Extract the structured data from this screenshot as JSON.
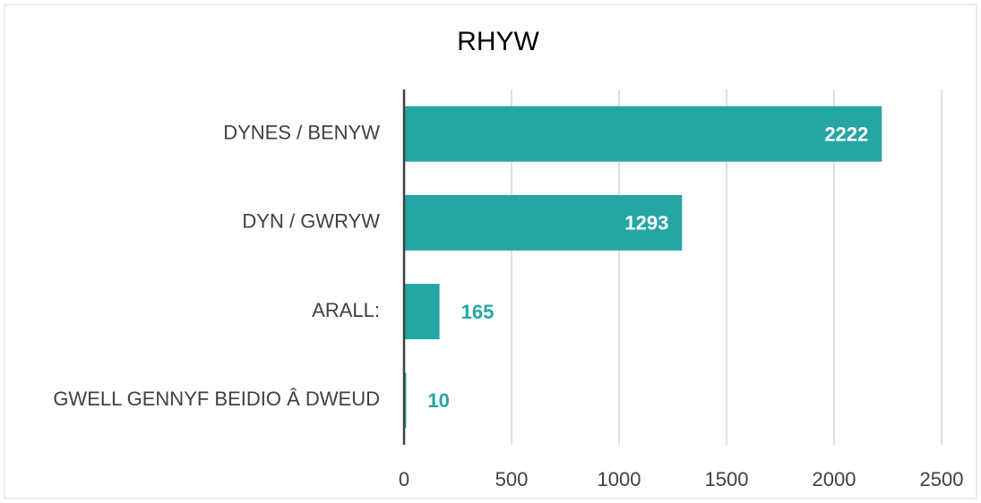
{
  "chart_data": {
    "type": "bar",
    "orientation": "horizontal",
    "title": "RHYW",
    "categories": [
      "DYNES / BENYW",
      "DYN / GWRYW",
      "ARALL:",
      "GWELL GENNYF BEIDIO Â DWEUD"
    ],
    "values": [
      2222,
      1293,
      165,
      10
    ],
    "color": "#26a5a5",
    "xlim": [
      0,
      2500
    ],
    "xticks": [
      0,
      500,
      1000,
      1500,
      2000,
      2500
    ],
    "grid": true
  }
}
